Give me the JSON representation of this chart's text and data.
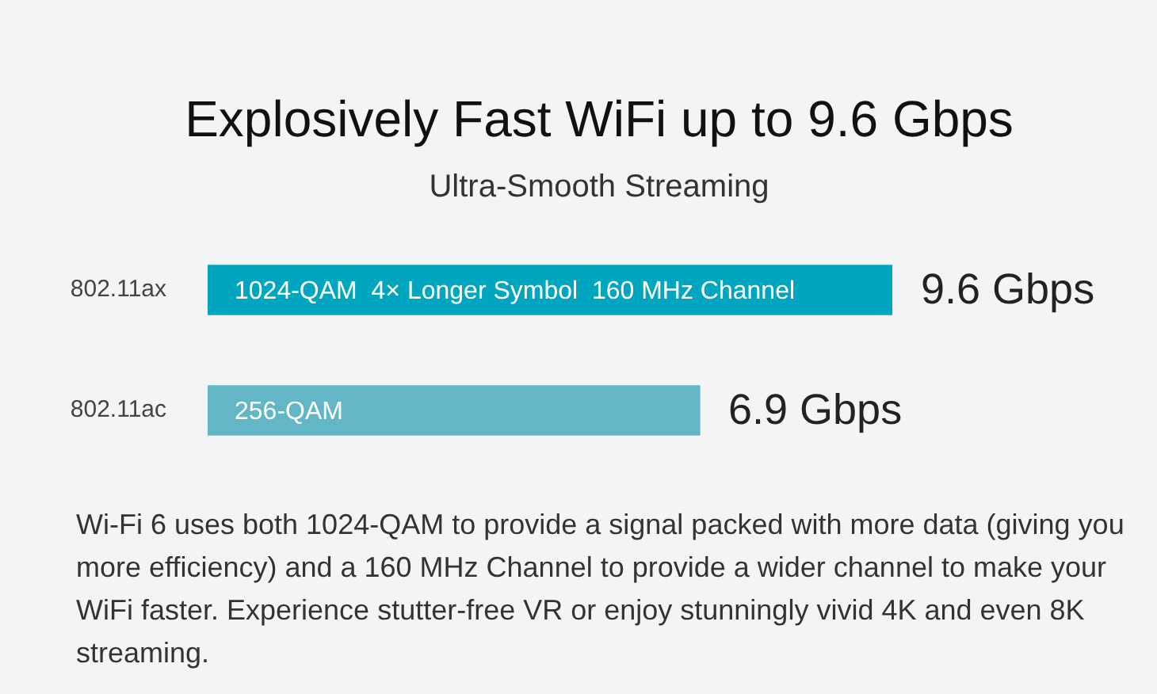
{
  "chart_data": {
    "type": "bar",
    "orientation": "horizontal",
    "title": "Explosively Fast WiFi up to 9.6 Gbps",
    "subtitle": "Ultra-Smooth Streaming",
    "categories": [
      "802.11ax",
      "802.11ac"
    ],
    "values": [
      9.6,
      6.9
    ],
    "colors": [
      "#00a5c0",
      "#63b6c5"
    ],
    "value_labels": [
      "9.6 Gbps",
      "6.9 Gbps"
    ],
    "tick_labels": "y",
    "annotations": [
      "1024-QAM  4× Longer Symbol  160 MHz Channel",
      "256-QAM",
      "Wi-Fi 6 uses both 1024-QAM to provide a signal packed with more data (giving you more efficiency) and a 160 MHz Channel to provide a wider channel to make your WiFi faster. Experience stutter-free VR or enjoy stunningly vivid 4K and even 8K streaming."
    ]
  }
}
